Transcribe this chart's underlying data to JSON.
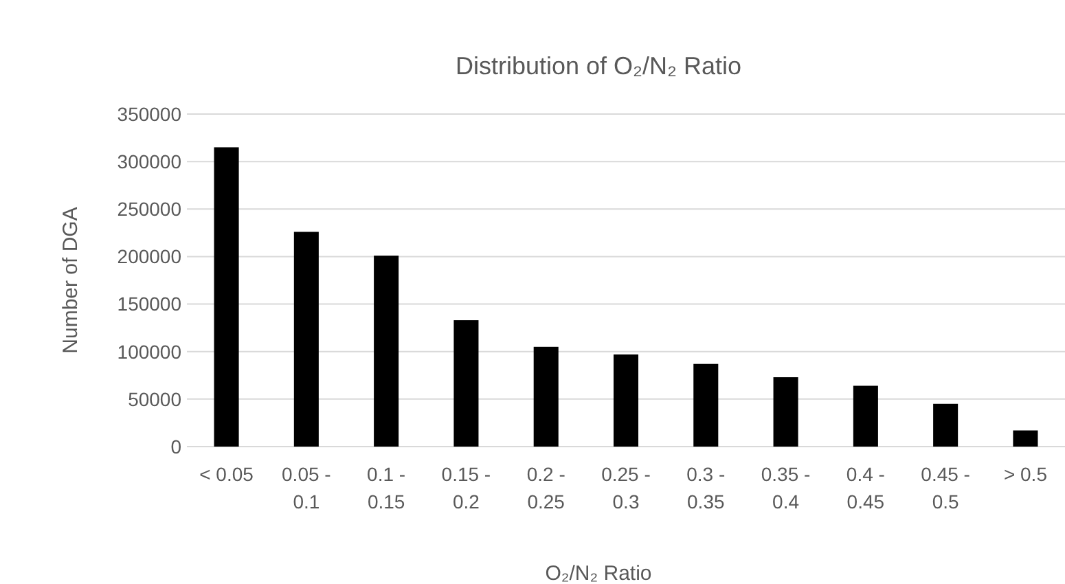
{
  "chart_data": {
    "type": "bar",
    "title": "Distribution of O₂/N₂ Ratio",
    "xlabel": "O₂/N₂ Ratio",
    "ylabel": "Number of DGA",
    "categories": [
      "< 0.05",
      "0.05 - 0.1",
      "0.1 - 0.15",
      "0.15 - 0.2",
      "0.2 - 0.25",
      "0.25 - 0.3",
      "0.3 - 0.35",
      "0.35 - 0.4",
      "0.4 - 0.45",
      "0.45 - 0.5",
      "> 0.5"
    ],
    "values": [
      315000,
      226000,
      201000,
      133000,
      105000,
      97000,
      87000,
      73000,
      64000,
      45000,
      17000
    ],
    "color": "#000000",
    "ylim": [
      0,
      350000
    ],
    "yticks": [
      0,
      50000,
      100000,
      150000,
      200000,
      250000,
      300000,
      350000
    ],
    "grid": "y"
  }
}
